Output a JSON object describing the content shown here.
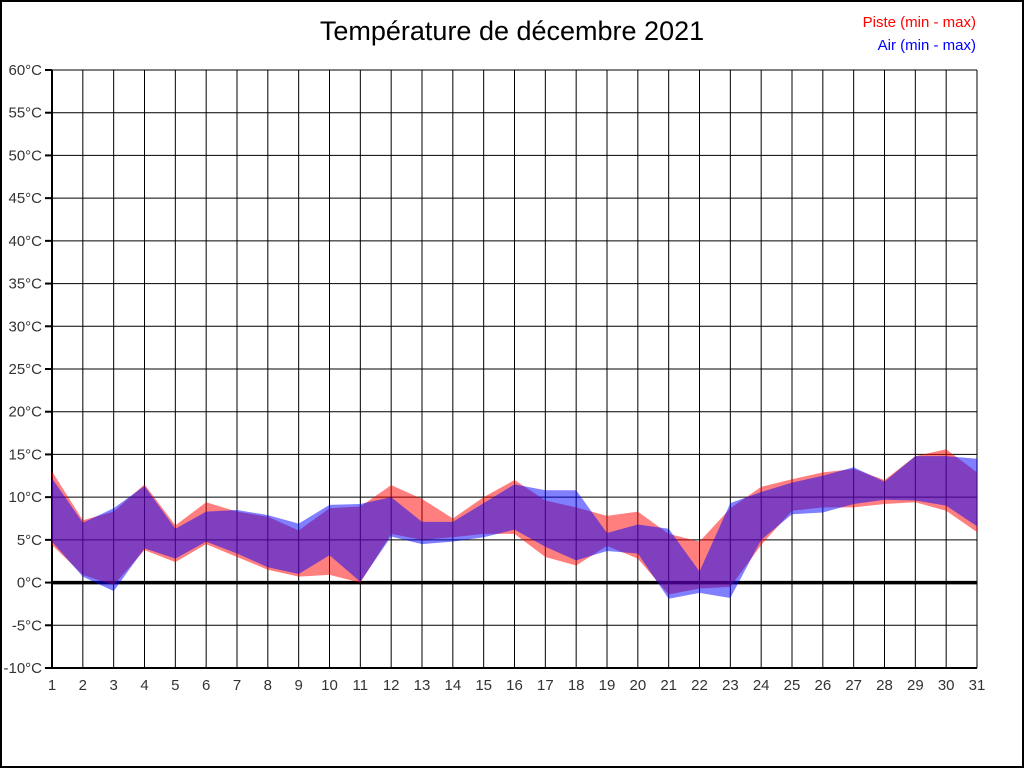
{
  "header": {
    "title": "Température de décembre 2021"
  },
  "legend": {
    "piste_label": "Piste (min - max)",
    "air_label": "Air (min - max)",
    "piste_color": "#ff0000",
    "air_color": "#0000ff"
  },
  "axis_colors": {
    "grid": "#000000",
    "tick_text": "#333333",
    "zero_line": "#000000"
  },
  "chart_data": {
    "type": "area",
    "title": "Température de décembre 2021",
    "xlabel": "",
    "ylabel": "",
    "x": [
      1,
      2,
      3,
      4,
      5,
      6,
      7,
      8,
      9,
      10,
      11,
      12,
      13,
      14,
      15,
      16,
      17,
      18,
      19,
      20,
      21,
      22,
      23,
      24,
      25,
      26,
      27,
      28,
      29,
      30,
      31
    ],
    "x_labels": [
      "1",
      "2",
      "3",
      "4",
      "5",
      "6",
      "7",
      "8",
      "9",
      "10",
      "11",
      "12",
      "13",
      "14",
      "15",
      "16",
      "17",
      "18",
      "19",
      "20",
      "21",
      "22",
      "23",
      "24",
      "25",
      "26",
      "27",
      "28",
      "29",
      "30",
      "31"
    ],
    "ylim": [
      -10,
      60
    ],
    "yticks": [
      -10,
      -5,
      0,
      5,
      10,
      15,
      20,
      25,
      30,
      35,
      40,
      45,
      50,
      55,
      60
    ],
    "ytick_labels": [
      "-10°C",
      "-5°C",
      "0°C",
      "5°C",
      "10°C",
      "15°C",
      "20°C",
      "25°C",
      "30°C",
      "35°C",
      "40°C",
      "45°C",
      "50°C",
      "55°C",
      "60°C"
    ],
    "grid": true,
    "zero_line_value": 0,
    "legend_position": "top-right",
    "series": [
      {
        "id": "piste",
        "name": "Piste (min - max)",
        "color": "#ff0000",
        "fill_opacity": 0.5,
        "min": [
          4.4,
          0.9,
          -0.3,
          3.8,
          2.4,
          4.5,
          3.0,
          1.5,
          0.7,
          0.9,
          0.0,
          5.7,
          5.0,
          5.3,
          5.7,
          5.7,
          3.0,
          2.0,
          4.3,
          2.8,
          -1.4,
          -0.7,
          -0.5,
          4.4,
          8.4,
          8.8,
          8.8,
          9.2,
          9.4,
          8.4,
          5.9
        ],
        "max": [
          13.0,
          7.3,
          8.3,
          11.5,
          6.7,
          9.4,
          8.3,
          7.7,
          6.1,
          8.7,
          8.9,
          11.4,
          9.8,
          7.5,
          10.0,
          12.0,
          9.6,
          8.8,
          7.8,
          8.3,
          5.7,
          4.8,
          8.7,
          11.2,
          12.1,
          12.9,
          13.3,
          12.0,
          14.8,
          15.6,
          12.9
        ]
      },
      {
        "id": "air",
        "name": "Air (min - max)",
        "color": "#0000ff",
        "fill_opacity": 0.5,
        "min": [
          4.8,
          0.7,
          -1.0,
          4.0,
          2.8,
          4.8,
          3.4,
          1.8,
          1.0,
          3.2,
          0.1,
          5.4,
          4.5,
          4.8,
          5.3,
          6.2,
          4.2,
          2.6,
          3.7,
          3.4,
          -1.9,
          -1.2,
          -1.8,
          5.0,
          8.0,
          8.2,
          9.2,
          9.7,
          9.6,
          9.0,
          6.6
        ],
        "max": [
          12.2,
          7.0,
          8.7,
          11.3,
          6.3,
          8.3,
          8.5,
          7.9,
          6.9,
          9.1,
          9.2,
          10.0,
          7.1,
          7.1,
          9.3,
          11.5,
          10.8,
          10.8,
          5.8,
          6.8,
          6.3,
          1.3,
          9.3,
          10.6,
          11.7,
          12.5,
          13.5,
          11.8,
          14.8,
          14.8,
          14.5
        ]
      }
    ]
  }
}
